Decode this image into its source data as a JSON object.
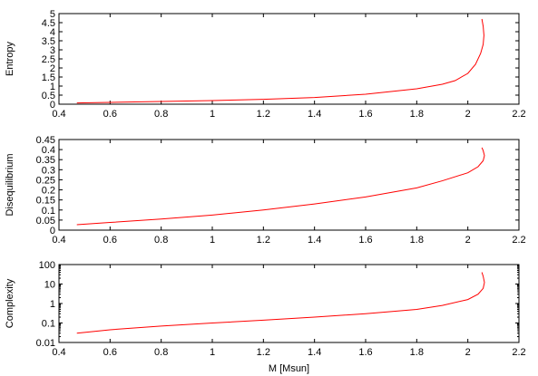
{
  "chart_data": [
    {
      "type": "line",
      "ylabel": "Entropy",
      "xlabel": "",
      "xlim": [
        0.4,
        2.2
      ],
      "ylim": [
        0,
        5
      ],
      "yscale": "linear",
      "xticks": [
        "0.4",
        "0.6",
        "0.8",
        "1",
        "1.2",
        "1.4",
        "1.6",
        "1.8",
        "2",
        "2.2"
      ],
      "yticks": [
        "0",
        "0.5",
        "1",
        "1.5",
        "2",
        "2.5",
        "3",
        "3.5",
        "4",
        "4.5",
        "5"
      ],
      "series": [
        {
          "color": "#ff0000",
          "x": [
            0.47,
            0.6,
            0.8,
            1.0,
            1.2,
            1.4,
            1.6,
            1.8,
            1.9,
            1.95,
            2.0,
            2.03,
            2.05,
            2.06,
            2.063,
            2.06,
            2.055
          ],
          "y": [
            0.07,
            0.1,
            0.15,
            0.2,
            0.27,
            0.37,
            0.55,
            0.85,
            1.1,
            1.3,
            1.7,
            2.2,
            2.8,
            3.3,
            3.8,
            4.3,
            4.7
          ]
        }
      ]
    },
    {
      "type": "line",
      "ylabel": "Disequilibrium",
      "xlabel": "",
      "xlim": [
        0.4,
        2.2
      ],
      "ylim": [
        0,
        0.45
      ],
      "yscale": "linear",
      "xticks": [
        "0.4",
        "0.6",
        "0.8",
        "1",
        "1.2",
        "1.4",
        "1.6",
        "1.8",
        "2",
        "2.2"
      ],
      "yticks": [
        "0",
        "0.05",
        "0.1",
        "0.15",
        "0.2",
        "0.25",
        "0.3",
        "0.35",
        "0.4",
        "0.45"
      ],
      "series": [
        {
          "color": "#ff0000",
          "x": [
            0.47,
            0.6,
            0.8,
            1.0,
            1.2,
            1.4,
            1.6,
            1.8,
            1.9,
            2.0,
            2.04,
            2.06,
            2.065,
            2.06,
            2.055
          ],
          "y": [
            0.027,
            0.038,
            0.055,
            0.075,
            0.1,
            0.13,
            0.165,
            0.21,
            0.245,
            0.285,
            0.315,
            0.345,
            0.37,
            0.395,
            0.41
          ]
        }
      ]
    },
    {
      "type": "line",
      "ylabel": "Complexity",
      "xlabel": "M [Msun]",
      "xlim": [
        0.4,
        2.2
      ],
      "ylim": [
        0.01,
        100
      ],
      "yscale": "log",
      "xticks": [
        "0.4",
        "0.6",
        "0.8",
        "1",
        "1.2",
        "1.4",
        "1.6",
        "1.8",
        "2",
        "2.2"
      ],
      "yticks": [
        "0.01",
        "0.1",
        "1",
        "10",
        "100"
      ],
      "series": [
        {
          "color": "#ff0000",
          "x": [
            0.47,
            0.6,
            0.8,
            1.0,
            1.2,
            1.4,
            1.6,
            1.8,
            1.9,
            2.0,
            2.04,
            2.06,
            2.065,
            2.06,
            2.055
          ],
          "y": [
            0.03,
            0.045,
            0.07,
            0.1,
            0.14,
            0.2,
            0.3,
            0.5,
            0.8,
            1.6,
            3.0,
            6.0,
            12.0,
            25.0,
            40.0
          ]
        }
      ]
    }
  ]
}
